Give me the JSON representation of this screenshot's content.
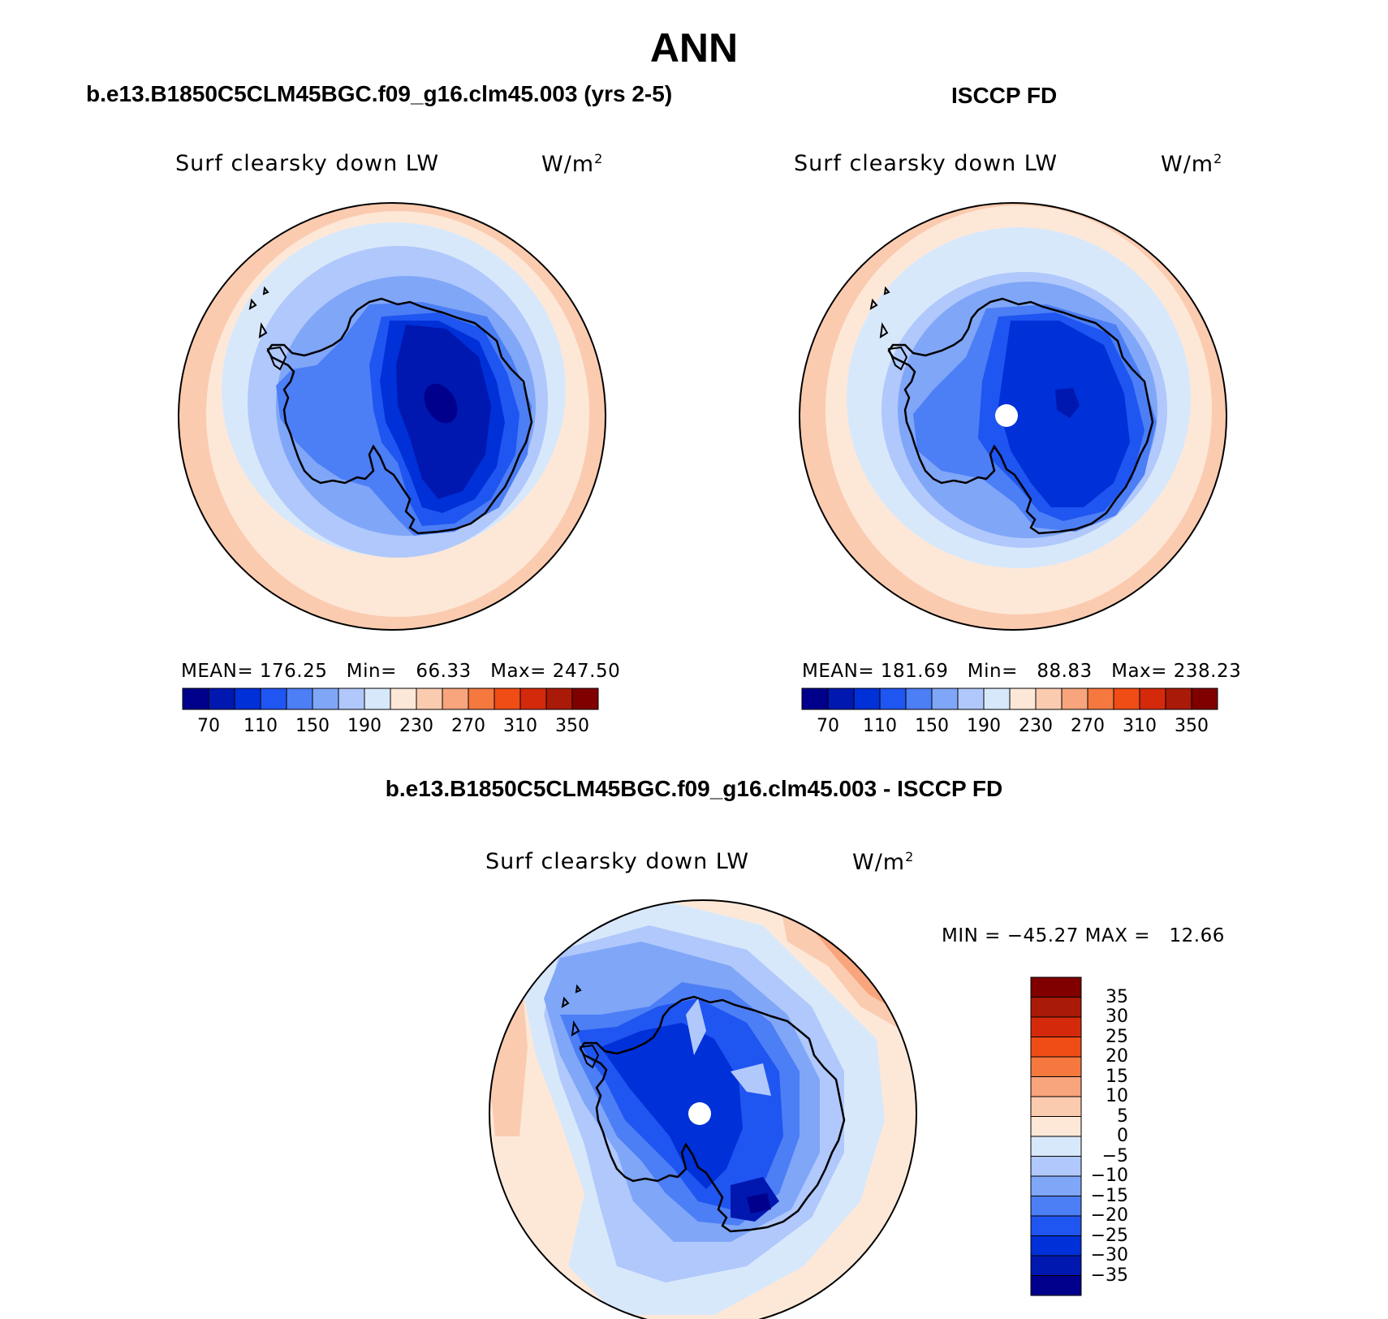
{
  "figure": {
    "season": "ANN",
    "panels": [
      {
        "title": "b.e13.B1850C5CLM45BGC.f09_g16.clm45.003 (yrs 2-5)",
        "variable": "Surf clearsky down LW",
        "units": "W/m",
        "units_sup": "2",
        "stats": "MEAN= 176.25   Min=   66.33   Max= 247.50",
        "pole_hole": false
      },
      {
        "title": "ISCCP FD",
        "variable": "Surf clearsky down LW",
        "units": "W/m",
        "units_sup": "2",
        "stats": "MEAN= 181.69   Min=   88.83   Max= 238.23",
        "pole_hole": true
      },
      {
        "title": "b.e13.B1850C5CLM45BGC.f09_g16.clm45.003 - ISCCP FD",
        "variable": "Surf clearsky down LW",
        "units": "W/m",
        "units_sup": "2",
        "stats": "MIN = −45.27 MAX =   12.66",
        "pole_hole": true
      }
    ],
    "colorbar_abs": {
      "colors": [
        "#00008c",
        "#0018b0",
        "#0030d8",
        "#1f55f0",
        "#4c7ef5",
        "#80a6f8",
        "#b0c8fb",
        "#d8e8fb",
        "#fde8d8",
        "#fbcbb0",
        "#f8a47c",
        "#f5783f",
        "#f04c16",
        "#d42a0b",
        "#aa1a08",
        "#800000"
      ],
      "labels": [
        "70",
        "110",
        "150",
        "190",
        "230",
        "270",
        "310",
        "350"
      ]
    },
    "colorbar_diff": {
      "colors_bottom_to_top": [
        "#00008c",
        "#0018b0",
        "#0030d8",
        "#1f55f0",
        "#4c7ef5",
        "#80a6f8",
        "#b0c8fb",
        "#d8e8fb",
        "#fde8d8",
        "#fbcbb0",
        "#f8a47c",
        "#f5783f",
        "#f04c16",
        "#d42a0b",
        "#aa1a08",
        "#800000"
      ],
      "labels_top_to_bottom": [
        "35",
        "30",
        "25",
        "20",
        "15",
        "10",
        "5",
        "0",
        "−5",
        "−10",
        "−15",
        "−20",
        "−25",
        "−30",
        "−35"
      ]
    }
  }
}
